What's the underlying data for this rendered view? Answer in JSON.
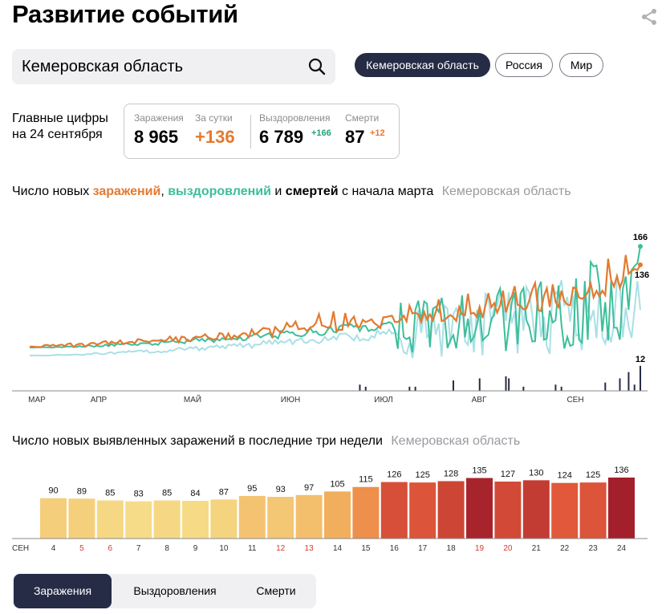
{
  "header": {
    "title": "Развитие событий",
    "share_icon": "share-icon"
  },
  "search": {
    "value": "Кемеровская область",
    "icon": "search-icon"
  },
  "region_pills": [
    {
      "label": "Кемеровская область",
      "active": true
    },
    {
      "label": "Россия",
      "active": false
    },
    {
      "label": "Мир",
      "active": false
    }
  ],
  "main_figures": {
    "title_line1": "Главные цифры",
    "title_line2": "на 24 сентября",
    "infections_label": "Заражения",
    "infections_value": "8 965",
    "per_day_label": "За сутки",
    "per_day_value": "+136",
    "recoveries_label": "Выздоровления",
    "recoveries_value": "6 789",
    "recoveries_delta": "+166",
    "deaths_label": "Смерти",
    "deaths_value": "87",
    "deaths_delta": "+12"
  },
  "colors": {
    "infections": "#e37a30",
    "recoveries": "#3dbe9a",
    "recoveries_light": "#a9e0e6",
    "deaths": "#262c46",
    "bar_yellow": "#f6dc88",
    "bar_red": "#a31f2b",
    "weekend": "#d23b2f",
    "active_pill": "#262c46"
  },
  "chart_data": [
    {
      "type": "line",
      "title_parts": [
        "Число новых ",
        "заражений",
        ", ",
        "выздоровлений",
        " и ",
        "смертей",
        " с начала марта"
      ],
      "region": "Кемеровская область",
      "x_ticks": [
        "МАР",
        "АПР",
        "МАЙ",
        "ИЮН",
        "ИЮЛ",
        "АВГ",
        "СЕН"
      ],
      "series": [
        {
          "name": "заражений",
          "last_value": 136
        },
        {
          "name": "выздоровлений",
          "last_value": 166
        },
        {
          "name": "смертей",
          "last_value": 12
        }
      ],
      "grid": false
    },
    {
      "type": "bar",
      "title": "Число новых выявленных заражений в последние три недели",
      "region": "Кемеровская область",
      "month_label": "СЕН",
      "categories": [
        "4",
        "5",
        "6",
        "7",
        "8",
        "9",
        "10",
        "11",
        "12",
        "13",
        "14",
        "15",
        "16",
        "17",
        "18",
        "19",
        "20",
        "21",
        "22",
        "23",
        "24"
      ],
      "weekend": [
        false,
        true,
        true,
        false,
        false,
        false,
        false,
        false,
        true,
        true,
        false,
        false,
        false,
        false,
        false,
        true,
        true,
        false,
        false,
        false,
        false
      ],
      "values": [
        90,
        89,
        85,
        83,
        85,
        84,
        87,
        95,
        93,
        97,
        105,
        115,
        126,
        125,
        128,
        135,
        127,
        130,
        124,
        125,
        136
      ],
      "ylim": [
        0,
        140
      ]
    }
  ],
  "tabs": [
    {
      "label": "Заражения",
      "active": true
    },
    {
      "label": "Выздоровления",
      "active": false
    },
    {
      "label": "Смерти",
      "active": false
    }
  ]
}
